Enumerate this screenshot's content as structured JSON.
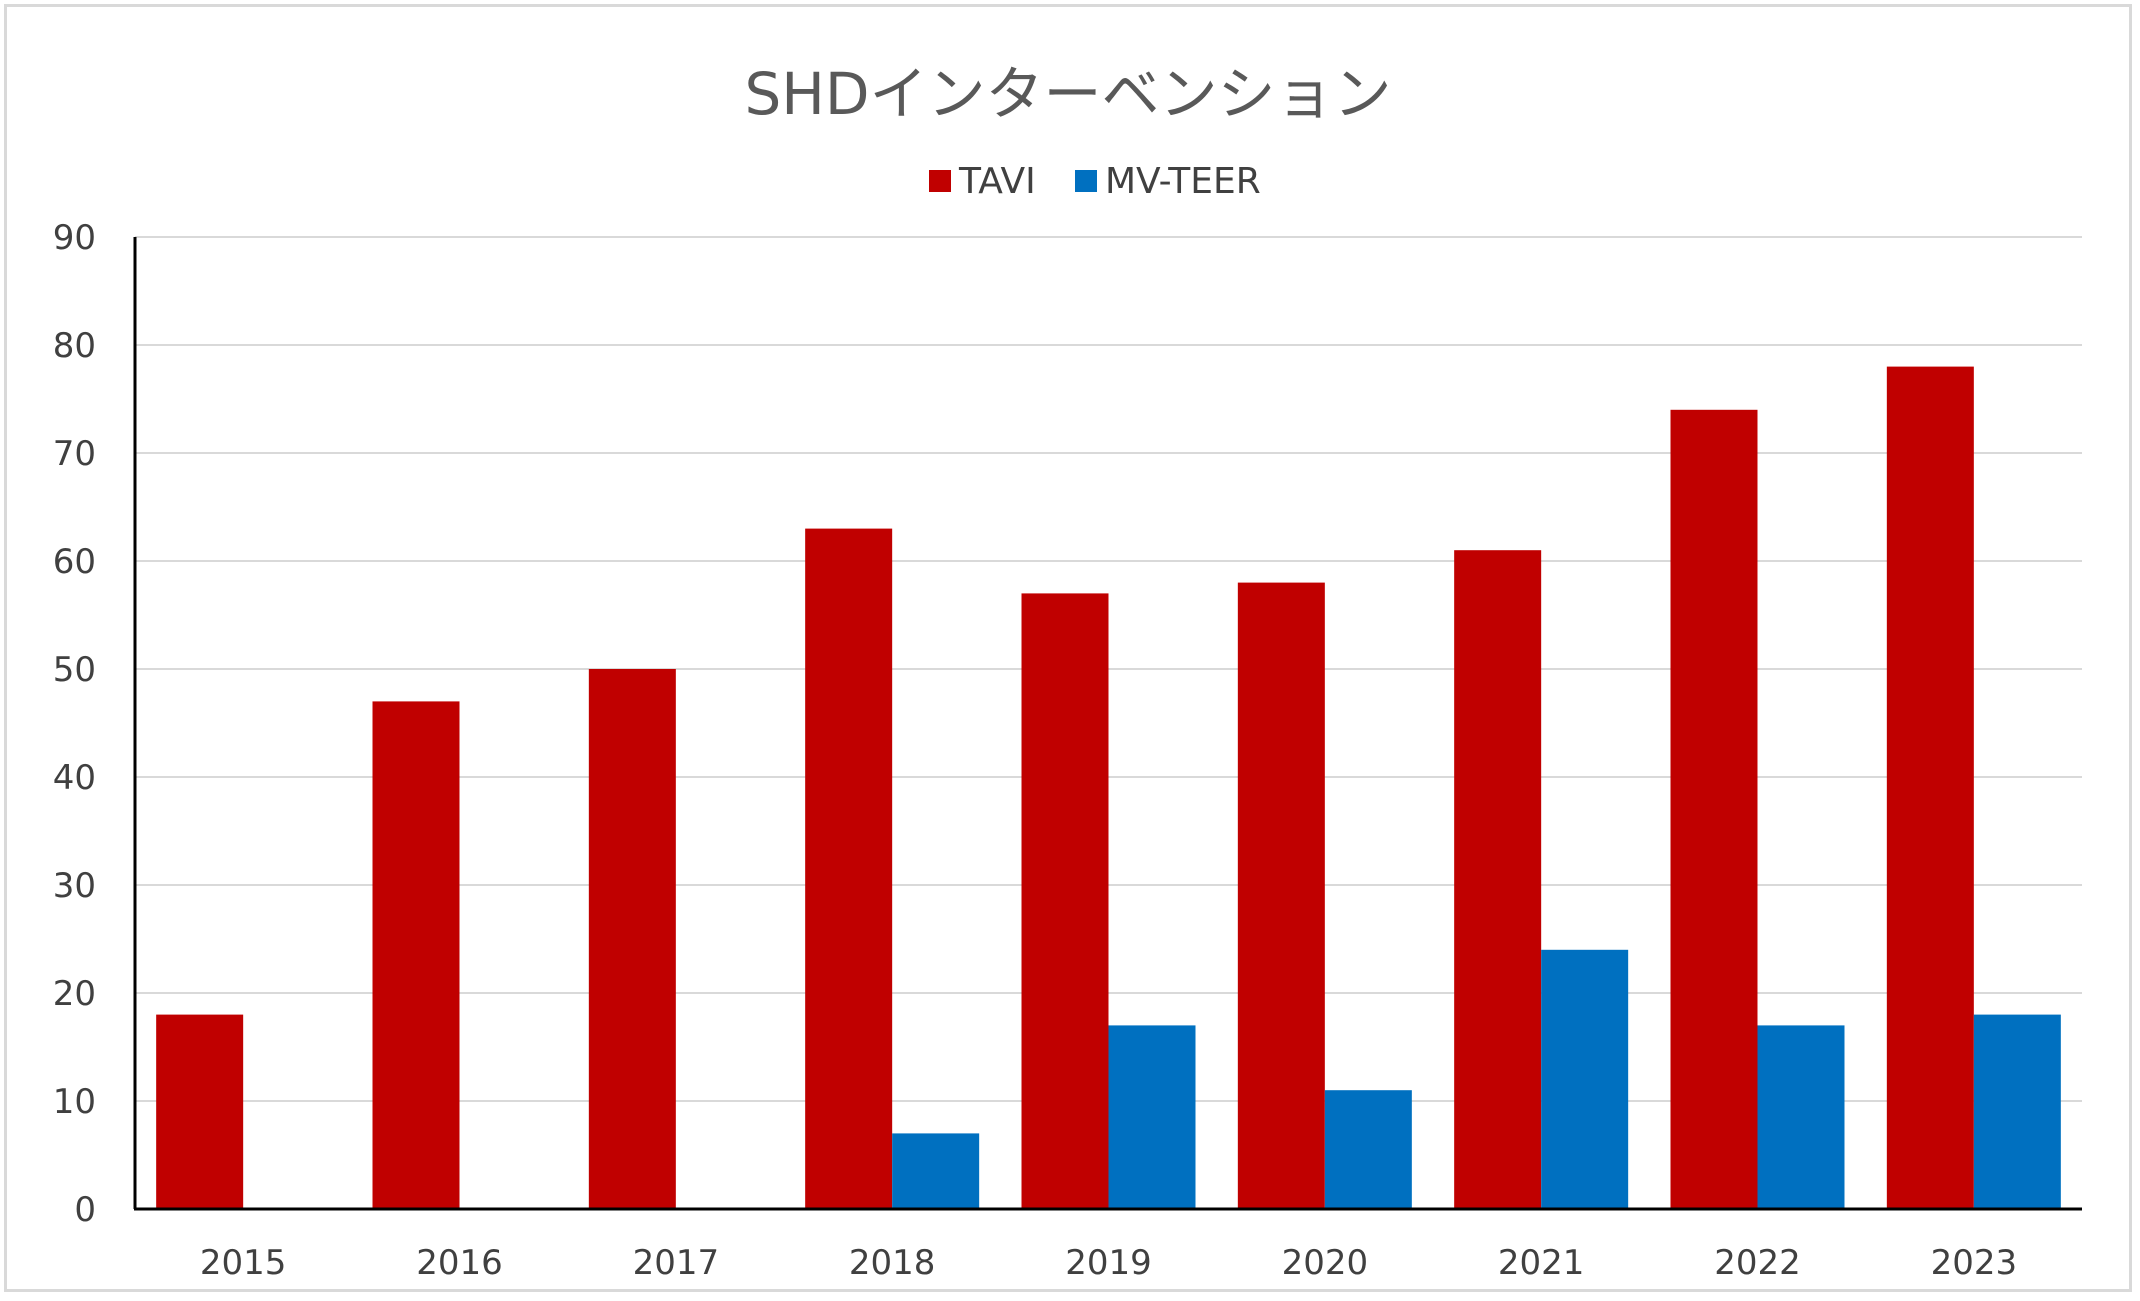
{
  "chart_data": {
    "type": "bar",
    "title": "SHDインターベンション",
    "xlabel": "",
    "ylabel": "",
    "categories": [
      "2015",
      "2016",
      "2017",
      "2018",
      "2019",
      "2020",
      "2021",
      "2022",
      "2023"
    ],
    "series": [
      {
        "name": "TAVI",
        "color": "#C00000",
        "values": [
          18,
          47,
          50,
          63,
          57,
          58,
          61,
          74,
          78
        ]
      },
      {
        "name": "MV-TEER",
        "color": "#0070C0",
        "values": [
          null,
          null,
          null,
          7,
          17,
          11,
          24,
          17,
          18
        ]
      }
    ],
    "ylim": [
      0,
      90
    ],
    "yticks": [
      0,
      10,
      20,
      30,
      40,
      50,
      60,
      70,
      80,
      90
    ],
    "grid": true,
    "gridline_color": "#d9d9d9",
    "legend_position": "top-center"
  }
}
